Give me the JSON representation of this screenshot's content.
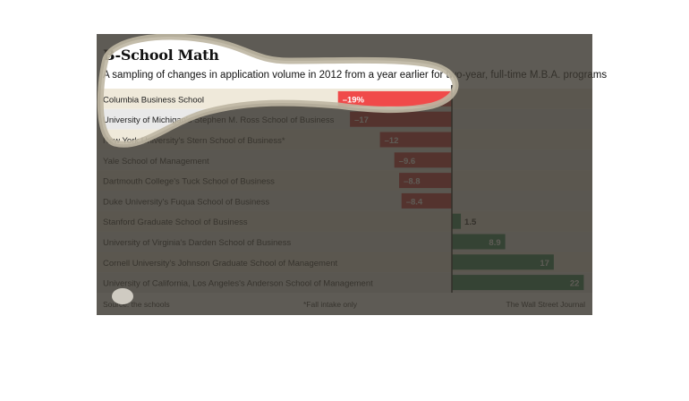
{
  "title": "B-School Math",
  "subtitle": "A sampling of changes in application volume in 2012 from a year earlier for two-year, full-time M.B.A. programs",
  "source": "Source: the schools",
  "footnote": "*Fall intake only",
  "credit": "The Wall Street Journal",
  "colors": {
    "negative": "#c8262b",
    "negative_highlight": "#f04a4a",
    "positive": "#1d7a4a",
    "band_a": "#efe9da",
    "band_b": "#e9e9e9"
  },
  "chart_data": {
    "type": "bar",
    "orientation": "horizontal",
    "title": "B-School Math",
    "xlabel": "",
    "ylabel": "",
    "xlim": [
      -19,
      22
    ],
    "categories": [
      "Columbia Business School",
      "University of Michigan's Stephen M. Ross School of Business",
      "New York University's Stern School of Business*",
      "Yale School of Management",
      "Dartmouth College's Tuck School of Business",
      "Duke University's Fuqua School of Business",
      "Stanford Graduate School of Business",
      "University of Virginia's Darden School of Business",
      "Cornell University's Johnson Graduate School of Management",
      "University of California, Los Angeles's Anderson School of Management"
    ],
    "values": [
      -19,
      -17,
      -12,
      -9.6,
      -8.8,
      -8.4,
      1.5,
      8.9,
      17,
      22
    ],
    "value_labels": [
      "–19%",
      "–17",
      "–12",
      "–9.6",
      "–8.8",
      "–8.4",
      "1.5",
      "8.9",
      "17",
      "22"
    ],
    "highlighted": "Columbia Business School"
  }
}
